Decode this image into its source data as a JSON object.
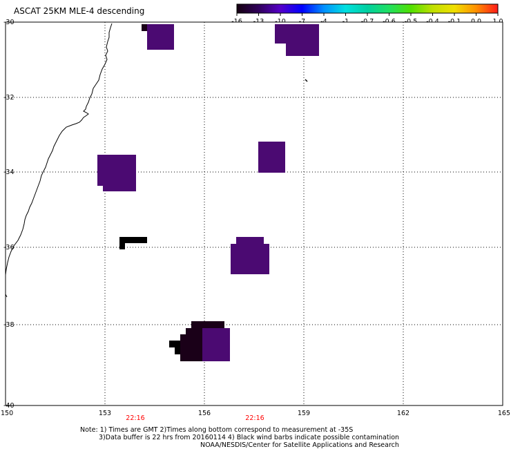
{
  "title": "ASCAT 25KM MLE-4 descending",
  "colorbar": {
    "labels": [
      "-16",
      "-13",
      "-10",
      "-7",
      "-4",
      "-1",
      "-0.7",
      "-0.6",
      "-0.5",
      "-0.4",
      "-0.1",
      "0.0",
      "1.0"
    ],
    "colors": [
      "#150010",
      "#30005a",
      "#5500c8",
      "#0000ff",
      "#0090ff",
      "#00e0e0",
      "#00d0a0",
      "#20e060",
      "#50e000",
      "#c0e000",
      "#f0e000",
      "#ff9000",
      "#ff1a1a"
    ]
  },
  "axes": {
    "lon_labels": [
      "150",
      "153",
      "156",
      "159",
      "162",
      "165"
    ],
    "lat_labels": [
      "-30",
      "-32",
      "-34",
      "-36",
      "-38",
      "-40"
    ],
    "times": [
      "22:16",
      "22:16"
    ],
    "time_color": "#ff0000"
  },
  "swath_colors": {
    "purple": "#4b0a72",
    "dark": "#1a0018",
    "black": "#000000"
  },
  "grid_style": "dotted",
  "footer": {
    "line1": "Note: 1) Times are GMT 2)Times along bottom correspond to measurement at -35S",
    "line2": "3)Data buffer is 22 hrs from 20160114 4) Black wind barbs indicate possible contamination",
    "line3": "NOAA/NESDIS/Center for Satellite Applications and Research"
  }
}
